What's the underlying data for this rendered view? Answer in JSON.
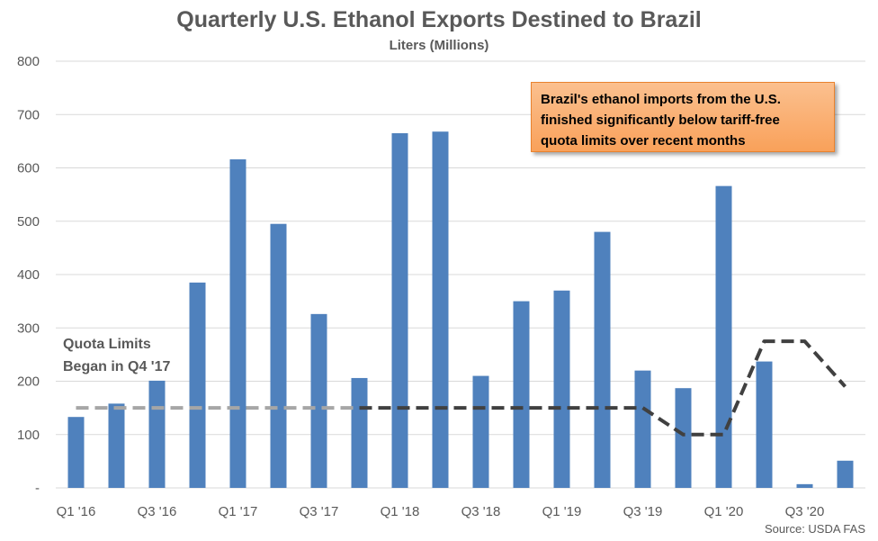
{
  "header": {
    "title": "Quarterly U.S. Ethanol Exports Destined to Brazil",
    "subtitle": "Liters (Millions)"
  },
  "annotations": {
    "callout_lines": [
      "Brazil's ethanol imports from the U.S.",
      "finished significantly below tariff-free",
      "quota limits over recent months"
    ],
    "quota_note_lines": [
      "Quota Limits",
      "Began in Q4 '17"
    ]
  },
  "source": "Source: USDA FAS",
  "chart_data": {
    "type": "bar",
    "categories": [
      "Q1 '16",
      "Q2 '16",
      "Q3 '16",
      "Q4 '16",
      "Q1 '17",
      "Q2 '17",
      "Q3 '17",
      "Q4 '17",
      "Q1 '18",
      "Q2 '18",
      "Q3 '18",
      "Q4 '18",
      "Q1 '19",
      "Q2 '19",
      "Q3 '19",
      "Q4 '19",
      "Q1 '20",
      "Q2 '20",
      "Q3 '20",
      "Q4 '20"
    ],
    "tick_labels": [
      "Q1 '16",
      "",
      "Q3 '16",
      "",
      "Q1 '17",
      "",
      "Q3 '17",
      "",
      "Q1 '18",
      "",
      "Q3 '18",
      "",
      "Q1 '19",
      "",
      "Q3 '19",
      "",
      "Q1 '20",
      "",
      "Q3 '20",
      ""
    ],
    "series": [
      {
        "values": [
          133,
          158,
          201,
          385,
          616,
          495,
          326,
          206,
          665,
          668,
          210,
          350,
          370,
          480,
          220,
          187,
          566,
          237,
          7,
          51
        ],
        "color": "#4f81bd"
      }
    ],
    "quota_line": {
      "x": [
        "Q1 '16",
        "Q2 '16",
        "Q3 '16",
        "Q4 '16",
        "Q1 '17",
        "Q2 '17",
        "Q3 '17",
        "Q4 '17",
        "Q1 '18",
        "Q2 '18",
        "Q3 '18",
        "Q4 '18",
        "Q1 '19",
        "Q2 '19",
        "Q3 '19",
        "Q4 '19",
        "Q1 '20",
        "Q2 '20",
        "Q3 '20",
        "Q4 '20"
      ],
      "values": [
        150,
        150,
        150,
        150,
        150,
        150,
        150,
        150,
        150,
        150,
        150,
        150,
        150,
        150,
        150,
        100,
        100,
        275,
        275,
        190
      ],
      "pre_quota_color": "#a6a6a6",
      "quota_color": "#404040",
      "quota_start": "Q4 '17",
      "style": "dashed"
    },
    "yticks": [
      0,
      100,
      200,
      300,
      400,
      500,
      600,
      700,
      800
    ],
    "ytick_labels": [
      "-",
      "100",
      "200",
      "300",
      "400",
      "500",
      "600",
      "700",
      "800"
    ],
    "ylim": [
      0,
      800
    ],
    "grid": true,
    "legend": "none",
    "gridline_color": "#d9d9d9",
    "text_color": "#595959"
  }
}
